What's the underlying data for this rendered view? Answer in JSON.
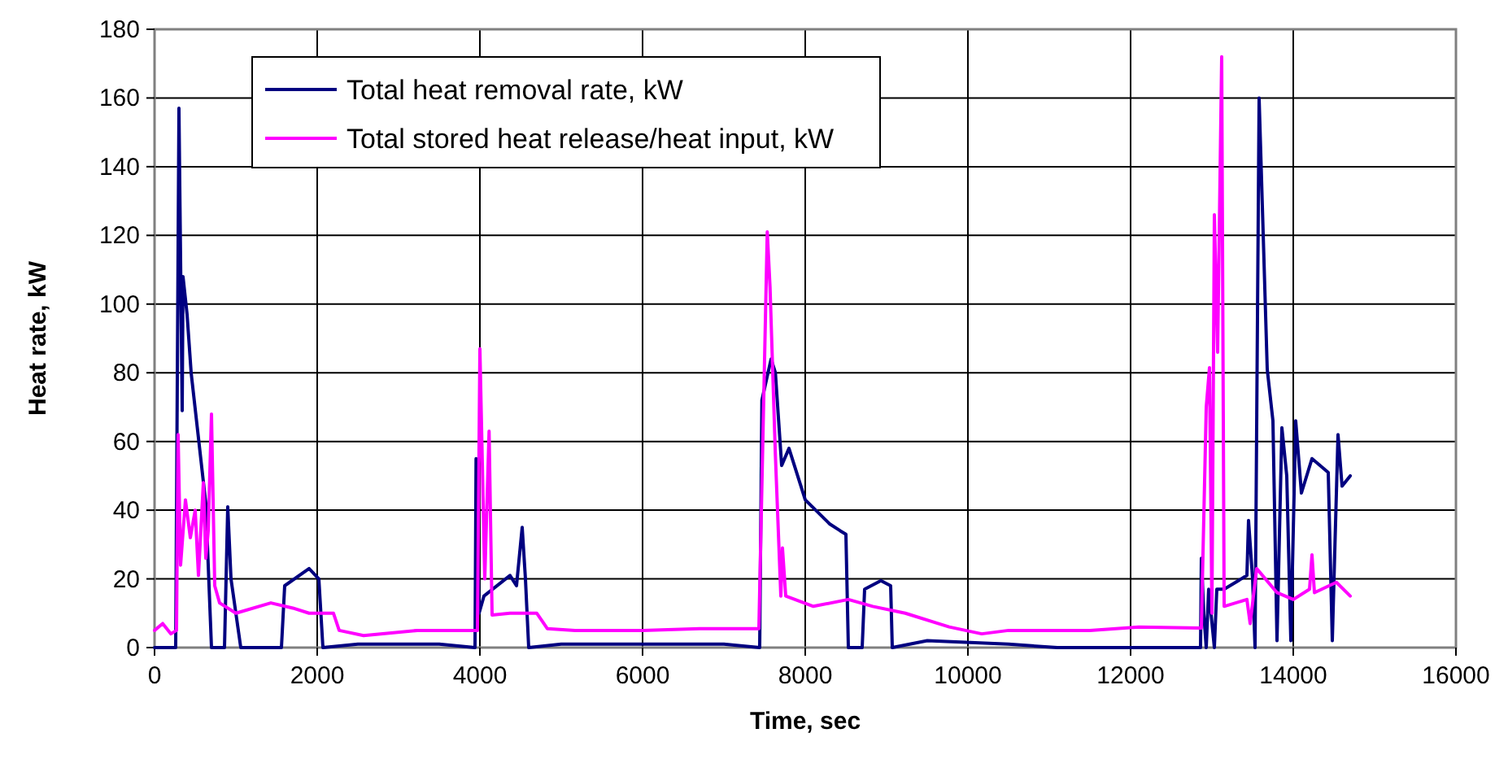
{
  "chart_data": {
    "type": "line",
    "xlabel": "Time, sec",
    "ylabel": "Heat rate, kW",
    "xlim": [
      0,
      16000
    ],
    "xticks": [
      0,
      2000,
      4000,
      6000,
      8000,
      10000,
      12000,
      14000,
      16000
    ],
    "ylim": [
      0,
      180
    ],
    "yticks": [
      0,
      20,
      40,
      60,
      80,
      100,
      120,
      140,
      160,
      180
    ],
    "grid": true,
    "legend": "top left",
    "line_style": "solid",
    "marker": "none",
    "series": [
      {
        "name": "Total heat removal rate, kW",
        "color": "#000080",
        "x": [
          0,
          260,
          300,
          340,
          350,
          400,
          450,
          630,
          700,
          860,
          900,
          940,
          1060,
          1560,
          1600,
          1900,
          2020,
          2070,
          2500,
          3000,
          3500,
          3940,
          3953,
          3990,
          4050,
          4370,
          4450,
          4520,
          4560,
          4600,
          5000,
          6000,
          7000,
          7440,
          7467,
          7580,
          7633,
          7710,
          7800,
          8000,
          8300,
          8430,
          8500,
          8530,
          8700,
          8730,
          8930,
          9050,
          9070,
          9500,
          10500,
          11100,
          12860,
          12870,
          12900,
          12930,
          12960,
          13030,
          13060,
          13150,
          13430,
          13450,
          13500,
          13530,
          13580,
          13680,
          13750,
          13800,
          13860,
          13920,
          13970,
          14030,
          14100,
          14230,
          14430,
          14480,
          14550,
          14600,
          14700
        ],
        "values": [
          0,
          0,
          157,
          69,
          108,
          97,
          80,
          42,
          0,
          0,
          41,
          20,
          0,
          0,
          18,
          23,
          20,
          0,
          1,
          1,
          1,
          0,
          55,
          10,
          15,
          21,
          18,
          35,
          20,
          0,
          1,
          1,
          1,
          0,
          72,
          84,
          80,
          53,
          58,
          43,
          36,
          34,
          33,
          0,
          0,
          17,
          19.5,
          18,
          0,
          2,
          1,
          0,
          0,
          26,
          10,
          0,
          17,
          0,
          17,
          17,
          21,
          37,
          20,
          0,
          160,
          81,
          66,
          2,
          64,
          50,
          2,
          66,
          45,
          55,
          51,
          2,
          62,
          47,
          50
        ]
      },
      {
        "name": "Total stored heat release/heat input, kW",
        "color": "#ff00ff",
        "x": [
          0,
          100,
          200,
          270,
          290,
          320,
          380,
          440,
          500,
          540,
          600,
          630,
          660,
          700,
          740,
          800,
          1000,
          1430,
          1700,
          1900,
          2200,
          2270,
          2570,
          3230,
          3900,
          3970,
          4000,
          4060,
          4113,
          4150,
          4370,
          4700,
          4830,
          5170,
          6000,
          6700,
          7430,
          7533,
          7567,
          7633,
          7700,
          7720,
          7760,
          8100,
          8530,
          8830,
          9230,
          9770,
          10170,
          10500,
          11500,
          12100,
          12870,
          12930,
          12970,
          13000,
          13030,
          13070,
          13120,
          13150,
          13430,
          13470,
          13550,
          13800,
          14000,
          14200,
          14230,
          14260,
          14530,
          14700
        ],
        "values": [
          5,
          7,
          4,
          5,
          62,
          24,
          43,
          32,
          40,
          21,
          48,
          26,
          34,
          68,
          18,
          13,
          10,
          13,
          11.5,
          10,
          10,
          5,
          3.5,
          5,
          5,
          5,
          87,
          20,
          63,
          9.5,
          10,
          10,
          5.5,
          5,
          5,
          5.5,
          5.5,
          121,
          105,
          56,
          15,
          29,
          15,
          12,
          14,
          12,
          10,
          6,
          4,
          5,
          5,
          6,
          5.7,
          70,
          81.5,
          10,
          126,
          86,
          172,
          12,
          14,
          7,
          23,
          16,
          14,
          17,
          27,
          16,
          19,
          15
        ]
      }
    ]
  }
}
